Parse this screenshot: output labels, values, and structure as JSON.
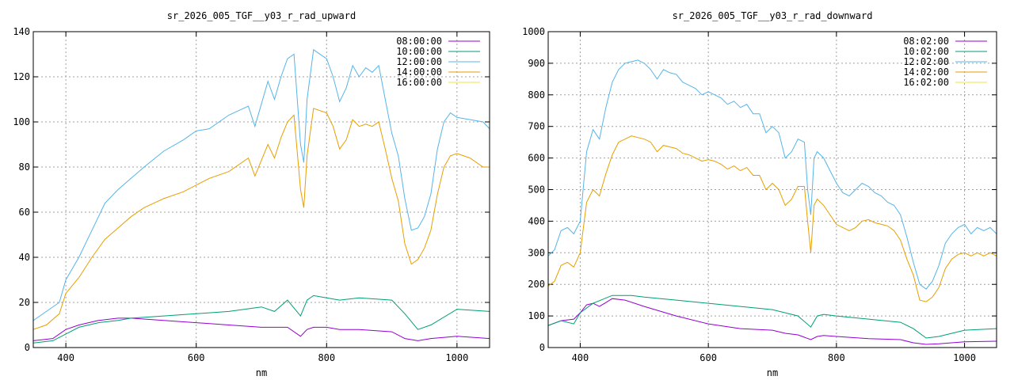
{
  "colors": {
    "purple": "#9400d3",
    "teal": "#009e73",
    "sky": "#56b4e9",
    "orange": "#e69f00",
    "yellow": "#f0e442"
  },
  "chart_data": [
    {
      "type": "line",
      "title": "sr_2026_005_TGF__y03_r_rad_upward",
      "xlabel": "nm",
      "ylabel": "",
      "xlim": [
        350,
        1050
      ],
      "ylim": [
        0,
        140
      ],
      "xticks": [
        400,
        600,
        800,
        1000
      ],
      "yticks": [
        0,
        20,
        40,
        60,
        80,
        100,
        120,
        140
      ],
      "grid": true,
      "legend_position": "top-right",
      "series": [
        {
          "name": "08:00:00",
          "color": "#9400d3",
          "x": [
            350,
            380,
            400,
            420,
            450,
            480,
            500,
            550,
            600,
            650,
            700,
            720,
            740,
            760,
            770,
            780,
            800,
            820,
            850,
            900,
            920,
            940,
            960,
            1000,
            1050
          ],
          "y": [
            3,
            4,
            8,
            10,
            12,
            13,
            13,
            12,
            11,
            10,
            9,
            9,
            9,
            5,
            8,
            9,
            9,
            8,
            8,
            7,
            4,
            3,
            4,
            5,
            4
          ]
        },
        {
          "name": "10:00:00",
          "color": "#009e73",
          "x": [
            350,
            380,
            400,
            420,
            450,
            480,
            500,
            550,
            600,
            650,
            700,
            720,
            740,
            760,
            770,
            780,
            800,
            820,
            850,
            900,
            920,
            940,
            960,
            1000,
            1050
          ],
          "y": [
            2,
            3,
            6,
            9,
            11,
            12,
            13,
            14,
            15,
            16,
            18,
            16,
            21,
            14,
            21,
            23,
            22,
            21,
            22,
            21,
            15,
            8,
            10,
            17,
            16
          ]
        },
        {
          "name": "12:00:00",
          "color": "#56b4e9",
          "x": [
            350,
            370,
            390,
            400,
            420,
            440,
            460,
            480,
            500,
            520,
            550,
            580,
            600,
            620,
            650,
            680,
            690,
            700,
            710,
            720,
            730,
            740,
            750,
            760,
            765,
            770,
            780,
            800,
            810,
            820,
            830,
            840,
            850,
            860,
            870,
            880,
            890,
            900,
            910,
            920,
            930,
            940,
            950,
            960,
            970,
            980,
            990,
            1000,
            1020,
            1040,
            1050
          ],
          "y": [
            12,
            16,
            20,
            30,
            40,
            52,
            64,
            70,
            75,
            80,
            87,
            92,
            96,
            97,
            103,
            107,
            98,
            108,
            118,
            110,
            120,
            128,
            130,
            90,
            82,
            110,
            132,
            128,
            120,
            109,
            115,
            125,
            120,
            124,
            122,
            125,
            110,
            95,
            85,
            66,
            52,
            53,
            58,
            68,
            88,
            100,
            104,
            102,
            101,
            100,
            97
          ]
        },
        {
          "name": "14:00:00",
          "color": "#e69f00",
          "x": [
            350,
            370,
            390,
            400,
            420,
            440,
            460,
            480,
            500,
            520,
            550,
            580,
            600,
            620,
            650,
            680,
            690,
            700,
            710,
            720,
            730,
            740,
            750,
            760,
            765,
            770,
            780,
            800,
            810,
            820,
            830,
            840,
            850,
            860,
            870,
            880,
            890,
            900,
            910,
            920,
            930,
            940,
            950,
            960,
            970,
            980,
            990,
            1000,
            1020,
            1040,
            1050
          ],
          "y": [
            8,
            10,
            15,
            24,
            31,
            40,
            48,
            53,
            58,
            62,
            66,
            69,
            72,
            75,
            78,
            84,
            76,
            83,
            90,
            84,
            93,
            100,
            103,
            70,
            62,
            85,
            106,
            104,
            98,
            88,
            92,
            101,
            98,
            99,
            98,
            100,
            88,
            75,
            65,
            46,
            37,
            39,
            44,
            52,
            68,
            80,
            85,
            86,
            84,
            80,
            80
          ]
        },
        {
          "name": "16:00:00",
          "color": "#f0e442",
          "x": [
            350,
            1050
          ],
          "y": [
            0,
            0
          ]
        }
      ]
    },
    {
      "type": "line",
      "title": "sr_2026_005_TGF__y03_r_rad_downward",
      "xlabel": "nm",
      "ylabel": "",
      "xlim": [
        350,
        1050
      ],
      "ylim": [
        0,
        1000
      ],
      "xticks": [
        400,
        600,
        800,
        1000
      ],
      "yticks": [
        0,
        100,
        200,
        300,
        400,
        500,
        600,
        700,
        800,
        900,
        1000
      ],
      "grid": true,
      "legend_position": "top-right",
      "series": [
        {
          "name": "08:02:00",
          "color": "#9400d3",
          "x": [
            350,
            370,
            390,
            400,
            410,
            420,
            430,
            450,
            470,
            500,
            550,
            600,
            650,
            700,
            720,
            740,
            760,
            770,
            780,
            800,
            850,
            900,
            920,
            940,
            960,
            1000,
            1050
          ],
          "y": [
            70,
            85,
            90,
            110,
            135,
            140,
            130,
            155,
            150,
            130,
            100,
            75,
            60,
            55,
            45,
            40,
            25,
            35,
            38,
            35,
            28,
            25,
            15,
            10,
            12,
            18,
            20
          ]
        },
        {
          "name": "10:02:00",
          "color": "#009e73",
          "x": [
            350,
            370,
            390,
            400,
            420,
            450,
            480,
            500,
            550,
            600,
            650,
            700,
            720,
            740,
            760,
            770,
            780,
            800,
            850,
            900,
            920,
            940,
            960,
            1000,
            1050
          ],
          "y": [
            70,
            85,
            75,
            110,
            140,
            165,
            165,
            160,
            150,
            140,
            130,
            120,
            110,
            100,
            65,
            100,
            105,
            100,
            90,
            80,
            60,
            30,
            35,
            55,
            60
          ]
        },
        {
          "name": "12:02:00",
          "color": "#56b4e9",
          "x": [
            350,
            360,
            370,
            380,
            390,
            400,
            410,
            420,
            430,
            440,
            450,
            460,
            470,
            480,
            490,
            500,
            510,
            520,
            530,
            540,
            550,
            560,
            570,
            580,
            590,
            600,
            610,
            620,
            630,
            640,
            650,
            660,
            670,
            680,
            690,
            700,
            710,
            720,
            730,
            740,
            750,
            755,
            760,
            765,
            770,
            780,
            790,
            800,
            810,
            820,
            830,
            840,
            850,
            860,
            870,
            880,
            890,
            900,
            910,
            920,
            930,
            940,
            950,
            960,
            970,
            980,
            990,
            1000,
            1010,
            1020,
            1030,
            1040,
            1050
          ],
          "y": [
            290,
            310,
            370,
            380,
            360,
            400,
            620,
            690,
            660,
            760,
            840,
            880,
            900,
            905,
            910,
            900,
            880,
            850,
            880,
            870,
            865,
            840,
            830,
            820,
            800,
            810,
            800,
            790,
            770,
            780,
            760,
            770,
            740,
            740,
            680,
            700,
            680,
            600,
            620,
            660,
            650,
            500,
            420,
            600,
            620,
            600,
            560,
            520,
            490,
            480,
            500,
            520,
            510,
            490,
            480,
            460,
            450,
            420,
            350,
            270,
            200,
            185,
            210,
            260,
            330,
            360,
            380,
            390,
            360,
            380,
            370,
            380,
            360
          ]
        },
        {
          "name": "14:02:00",
          "color": "#e69f00",
          "x": [
            350,
            360,
            370,
            380,
            390,
            400,
            410,
            420,
            430,
            440,
            450,
            460,
            470,
            480,
            490,
            500,
            510,
            520,
            530,
            540,
            550,
            560,
            570,
            580,
            590,
            600,
            610,
            620,
            630,
            640,
            650,
            660,
            670,
            680,
            690,
            700,
            710,
            720,
            730,
            740,
            750,
            755,
            760,
            765,
            770,
            780,
            790,
            800,
            810,
            820,
            830,
            840,
            850,
            860,
            870,
            880,
            890,
            900,
            910,
            920,
            930,
            940,
            950,
            960,
            970,
            980,
            990,
            1000,
            1010,
            1020,
            1030,
            1040,
            1050
          ],
          "y": [
            195,
            210,
            260,
            270,
            255,
            300,
            460,
            500,
            480,
            550,
            610,
            650,
            660,
            670,
            665,
            660,
            650,
            620,
            640,
            635,
            630,
            615,
            610,
            600,
            590,
            595,
            590,
            580,
            565,
            575,
            560,
            570,
            545,
            545,
            500,
            520,
            500,
            450,
            470,
            510,
            510,
            400,
            300,
            450,
            470,
            450,
            420,
            390,
            380,
            370,
            380,
            400,
            405,
            395,
            390,
            385,
            370,
            340,
            280,
            230,
            150,
            145,
            160,
            190,
            250,
            280,
            295,
            300,
            290,
            300,
            290,
            300,
            290
          ]
        },
        {
          "name": "16:02:00",
          "color": "#f0e442",
          "x": [
            350,
            1050
          ],
          "y": [
            0,
            0
          ]
        }
      ]
    }
  ]
}
